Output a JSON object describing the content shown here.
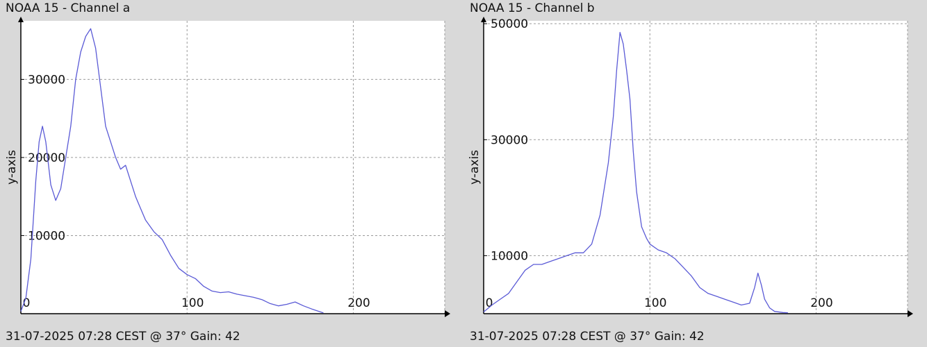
{
  "panels": [
    {
      "title": "NOAA 15 - Channel a",
      "footer": "31-07-2025 07:28 CEST @ 37° Gain: 42"
    },
    {
      "title": "NOAA 15 - Channel b",
      "footer": "31-07-2025 07:28 CEST @ 37° Gain: 42"
    }
  ],
  "colors": {
    "line": "#5a5ad6",
    "background": "#d9d9d9",
    "plot": "#ffffff",
    "grid": "#9a9a9a"
  },
  "chart_data": [
    {
      "type": "line",
      "title": "NOAA 15 - Channel a",
      "xlabel": "",
      "ylabel": "y-axis",
      "xlim": [
        0,
        255
      ],
      "ylim": [
        0,
        37500
      ],
      "xticks": [
        0,
        100,
        200
      ],
      "yticks": [
        10000,
        20000,
        30000
      ],
      "grid": true,
      "x": [
        0,
        3,
        6,
        9,
        11,
        13,
        15,
        18,
        21,
        24,
        27,
        30,
        33,
        36,
        39,
        42,
        45,
        48,
        51,
        54,
        57,
        60,
        63,
        66,
        69,
        72,
        75,
        80,
        85,
        90,
        95,
        100,
        105,
        110,
        115,
        120,
        125,
        130,
        135,
        140,
        145,
        150,
        155,
        160,
        165,
        170,
        175,
        180,
        182
      ],
      "series": [
        {
          "values": [
            300,
            2000,
            7000,
            17000,
            22000,
            24000,
            22000,
            16500,
            14500,
            16000,
            20000,
            24000,
            30000,
            33500,
            35500,
            36500,
            34000,
            29000,
            24000,
            22000,
            20000,
            18500,
            19000,
            17000,
            15000,
            13500,
            12000,
            10500,
            9500,
            7500,
            5800,
            5000,
            4500,
            3500,
            2900,
            2700,
            2800,
            2500,
            2300,
            2100,
            1800,
            1300,
            1000,
            1200,
            1500,
            1000,
            600,
            250,
            100
          ]
        }
      ]
    },
    {
      "type": "line",
      "title": "NOAA 15 - Channel b",
      "xlabel": "",
      "ylabel": "y-axis",
      "xlim": [
        0,
        255
      ],
      "ylim": [
        0,
        50500
      ],
      "xticks": [
        0,
        100,
        200
      ],
      "yticks": [
        10000,
        30000,
        50000
      ],
      "grid": true,
      "x": [
        0,
        5,
        10,
        15,
        20,
        25,
        30,
        35,
        40,
        45,
        50,
        55,
        60,
        65,
        70,
        75,
        78,
        80,
        82,
        84,
        86,
        88,
        90,
        92,
        95,
        98,
        100,
        105,
        110,
        115,
        120,
        125,
        130,
        135,
        140,
        145,
        150,
        155,
        160,
        163,
        165,
        167,
        169,
        172,
        175,
        180,
        183
      ],
      "series": [
        {
          "values": [
            300,
            1500,
            2500,
            3500,
            5500,
            7500,
            8500,
            8500,
            9000,
            9500,
            10000,
            10500,
            10500,
            12000,
            17000,
            26000,
            34000,
            42000,
            48500,
            46500,
            42000,
            37000,
            28000,
            21000,
            15000,
            13000,
            12000,
            11000,
            10500,
            9500,
            8000,
            6500,
            4500,
            3500,
            3000,
            2500,
            2000,
            1500,
            1800,
            4500,
            7000,
            5000,
            2500,
            1000,
            400,
            200,
            150
          ]
        }
      ]
    }
  ]
}
